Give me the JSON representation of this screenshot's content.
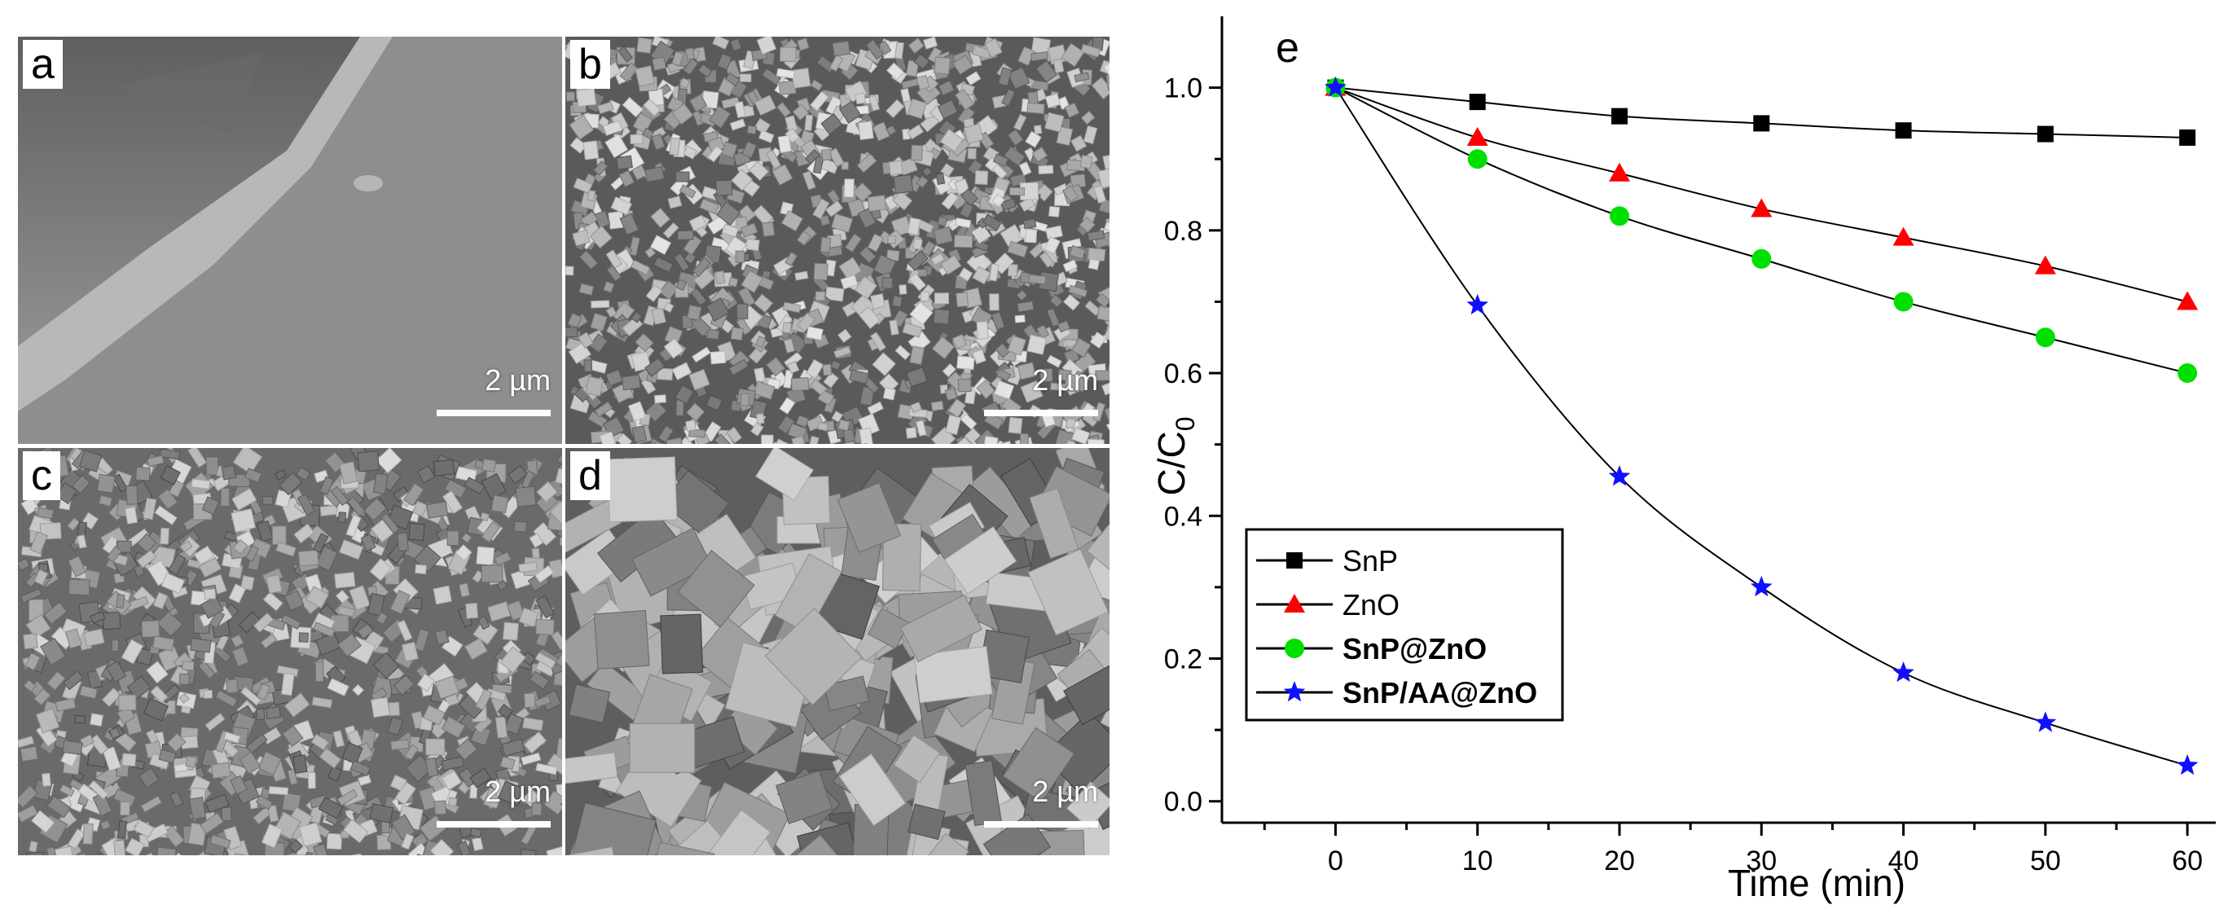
{
  "panels": [
    {
      "letter": "a",
      "scale": "2 µm",
      "style": "smooth"
    },
    {
      "letter": "b",
      "scale": "2 µm",
      "style": "fine-grains"
    },
    {
      "letter": "c",
      "scale": "2 µm",
      "style": "aggregates"
    },
    {
      "letter": "d",
      "scale": "2 µm",
      "style": "plates"
    }
  ],
  "chart_data": {
    "type": "line",
    "panel_letter": "e",
    "xlabel": "Time (min)",
    "ylabel": "C/C",
    "ylabel_subscript": "0",
    "xlim": [
      -8,
      62
    ],
    "ylim": [
      -0.03,
      1.1
    ],
    "x_ticks": [
      0,
      10,
      20,
      30,
      40,
      50,
      60
    ],
    "y_ticks": [
      0.0,
      0.2,
      0.4,
      0.6,
      0.8,
      1.0
    ],
    "y_tick_labels": [
      "0.0",
      "0.2",
      "0.4",
      "0.6",
      "0.8",
      "1.0"
    ],
    "legend_position": "bottom-left",
    "grid": false,
    "x": [
      0,
      10,
      20,
      30,
      40,
      50,
      60
    ],
    "series": [
      {
        "name": "SnP",
        "values": [
          1.0,
          0.98,
          0.96,
          0.95,
          0.94,
          0.935,
          0.93
        ],
        "color": "#000000",
        "marker": "square",
        "bold": false
      },
      {
        "name": "ZnO",
        "values": [
          1.0,
          0.93,
          0.88,
          0.83,
          0.79,
          0.75,
          0.7
        ],
        "color": "#ff0000",
        "marker": "triangle",
        "bold": false
      },
      {
        "name": "SnP@ZnO",
        "values": [
          1.0,
          0.9,
          0.82,
          0.76,
          0.7,
          0.65,
          0.6
        ],
        "color": "#00e000",
        "marker": "circle",
        "bold": true
      },
      {
        "name": "SnP/AA@ZnO",
        "values": [
          1.0,
          0.695,
          0.455,
          0.3,
          0.18,
          0.11,
          0.05
        ],
        "color": "#1010ff",
        "marker": "star",
        "bold": true
      }
    ]
  }
}
